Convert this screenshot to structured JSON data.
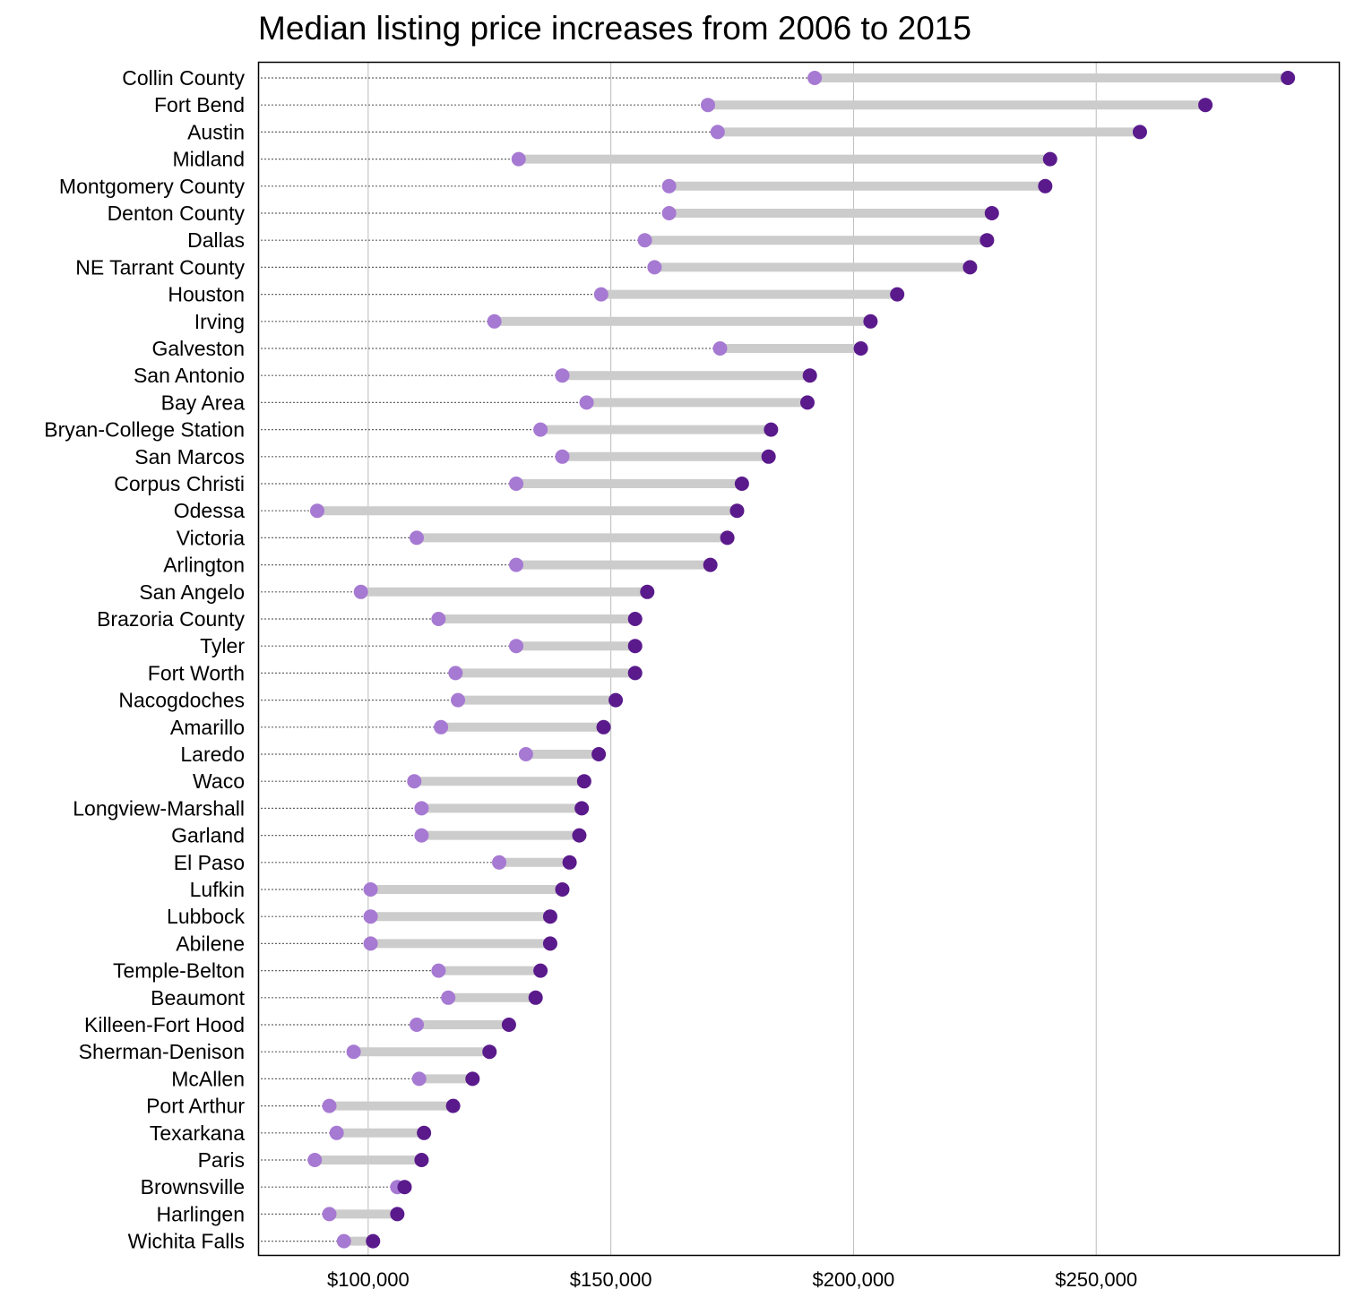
{
  "chart_data": {
    "type": "dumbbell",
    "title": "Median listing price increases from 2006 to 2015",
    "xlabel": "",
    "ylabel": "",
    "xlim": [
      77500,
      300000
    ],
    "xticks": [
      100000,
      150000,
      200000,
      250000
    ],
    "xtick_labels": [
      "$100,000",
      "$150,000",
      "$200,000",
      "$250,000"
    ],
    "grid": "vertical",
    "colors": {
      "start_2006": "#a679d2",
      "end_2015": "#5a1a8c",
      "bar": "#cccccc",
      "grid": "#bbbbbb",
      "guide": "#666666"
    },
    "categories": [
      "Collin County",
      "Fort Bend",
      "Austin",
      "Midland",
      "Montgomery County",
      "Denton County",
      "Dallas",
      "NE Tarrant County",
      "Houston",
      "Irving",
      "Galveston",
      "San Antonio",
      "Bay Area",
      "Bryan-College Station",
      "San Marcos",
      "Corpus Christi",
      "Odessa",
      "Victoria",
      "Arlington",
      "San Angelo",
      "Brazoria County",
      "Tyler",
      "Fort Worth",
      "Nacogdoches",
      "Amarillo",
      "Laredo",
      "Waco",
      "Longview-Marshall",
      "Garland",
      "El Paso",
      "Lufkin",
      "Lubbock",
      "Abilene",
      "Temple-Belton",
      "Beaumont",
      "Killeen-Fort Hood",
      "Sherman-Denison",
      "McAllen",
      "Port Arthur",
      "Texarkana",
      "Paris",
      "Brownsville",
      "Harlingen",
      "Wichita Falls"
    ],
    "series": [
      {
        "values": [
          192000,
          170000,
          172000,
          131000,
          162000,
          162000,
          157000,
          159000,
          148000,
          126000,
          172500,
          140000,
          145000,
          135500,
          140000,
          130500,
          89500,
          110000,
          130500,
          98500,
          114500,
          130500,
          118000,
          118500,
          115000,
          132500,
          109500,
          111000,
          111000,
          127000,
          100500,
          100500,
          100500,
          114500,
          116500,
          110000,
          97000,
          110500,
          92000,
          93500,
          89000,
          106000,
          92000,
          95000
        ]
      },
      {
        "values": [
          289500,
          272500,
          259000,
          240500,
          239500,
          228500,
          227500,
          224000,
          209000,
          203500,
          201500,
          191000,
          190500,
          183000,
          182500,
          177000,
          176000,
          174000,
          170500,
          157500,
          155000,
          155000,
          155000,
          151000,
          148500,
          147500,
          144500,
          144000,
          143500,
          141500,
          140000,
          137500,
          137500,
          135500,
          134500,
          129000,
          125000,
          121500,
          117500,
          111500,
          111000,
          107500,
          106000,
          101000
        ]
      }
    ]
  }
}
